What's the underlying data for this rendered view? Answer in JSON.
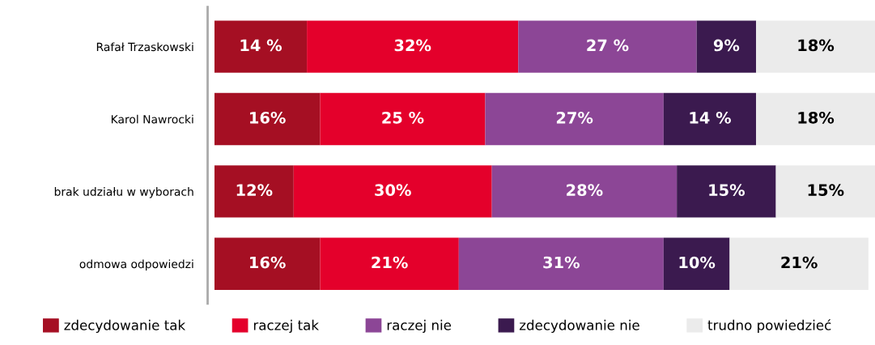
{
  "chart_data": {
    "type": "bar",
    "orientation": "horizontal",
    "stacked": true,
    "categories": [
      "Rafał Trzaskowski",
      "Karol Nawrocki",
      "brak udziału w wyborach",
      "odmowa odpowiedzi"
    ],
    "xlim": [
      0,
      100
    ],
    "tick_labels": "y",
    "grid": false,
    "legend": "bottom",
    "series": [
      {
        "name": "zdecydowanie tak",
        "color": "#a50f23",
        "values": [
          14,
          16,
          12,
          16
        ],
        "value_labels": [
          "14 %",
          "16%",
          "12%",
          "16%"
        ]
      },
      {
        "name": "raczej tak",
        "color": "#e4002b",
        "values": [
          32,
          25,
          30,
          21
        ],
        "value_labels": [
          "32%",
          "25 %",
          "30%",
          "21%"
        ]
      },
      {
        "name": "raczej nie",
        "color": "#8c4696",
        "values": [
          27,
          27,
          28,
          31
        ],
        "value_labels": [
          "27 %",
          "27%",
          "28%",
          "31%"
        ]
      },
      {
        "name": "zdecydowanie nie",
        "color": "#3b1a4f",
        "values": [
          9,
          14,
          15,
          10
        ],
        "value_labels": [
          "9%",
          "14 %",
          "15%",
          "10%"
        ]
      },
      {
        "name": "trudno powiedzieć",
        "color": "#ebebeb",
        "values": [
          18,
          18,
          15,
          21
        ],
        "value_labels": [
          "18%",
          "18%",
          "15%",
          "21%"
        ]
      }
    ]
  }
}
